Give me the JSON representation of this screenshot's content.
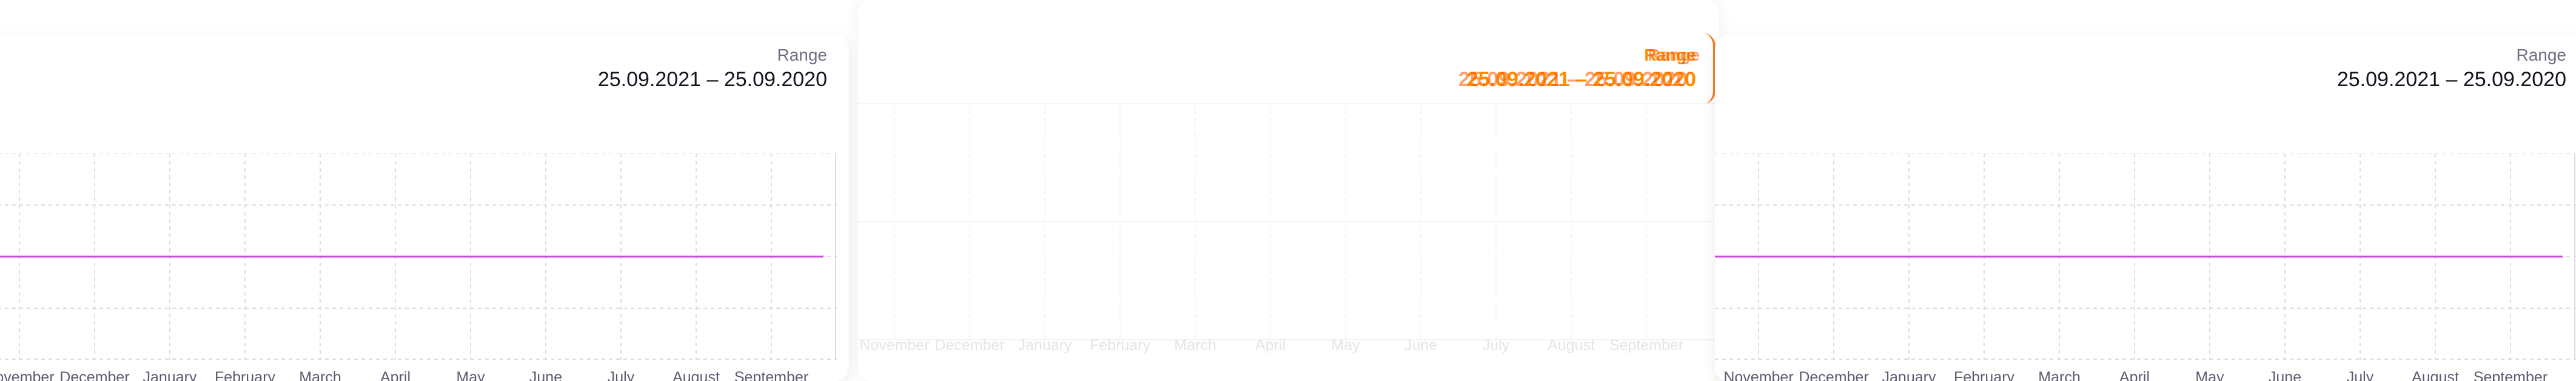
{
  "range": {
    "label": "Range",
    "value": "25.09.2021 – 25.09.2020",
    "ghost_value_b": "25.09.2021 – 25.09.2020"
  },
  "months": [
    "November",
    "December",
    "January",
    "February",
    "March",
    "April",
    "May",
    "June",
    "July",
    "August",
    "September"
  ],
  "colors": {
    "line": "#c552d6",
    "grid": "#dcdce4",
    "ghost_accent": "#ff8c00"
  },
  "chart_data": {
    "type": "line",
    "categories": [
      "November",
      "December",
      "January",
      "February",
      "March",
      "April",
      "May",
      "June",
      "July",
      "August",
      "September"
    ],
    "series": [
      {
        "values": [
          0,
          0,
          0,
          0,
          0,
          0,
          0,
          0,
          0,
          0,
          0
        ]
      }
    ],
    "title": "",
    "xlabel": "",
    "ylabel": "",
    "grid": true
  }
}
